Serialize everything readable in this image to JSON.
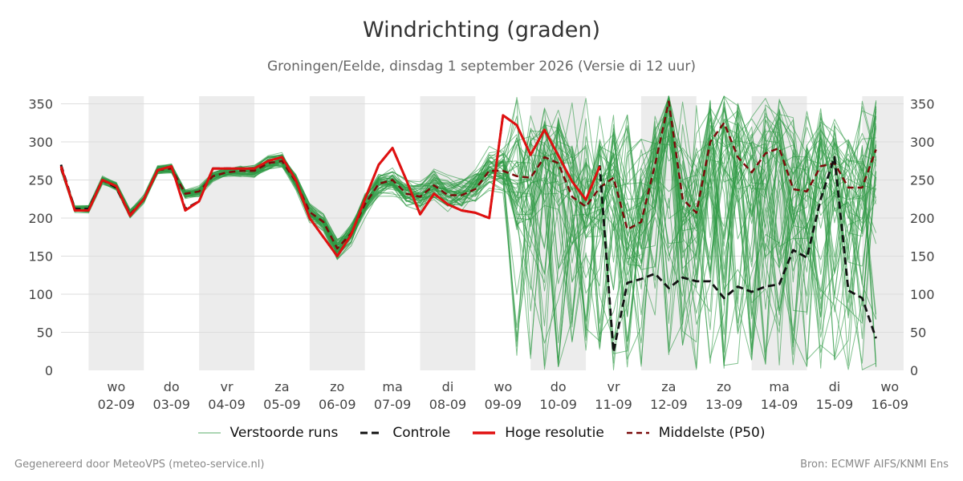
{
  "title": "Windrichting (graden)",
  "subtitle": "Groningen/Eelde, dinsdag  1 september 2026 (Versie di 12 uur)",
  "footer_left": "Gegenereerd door MeteoVPS (meteo-service.nl)",
  "footer_right": "Bron: ECMWF AIFS/KNMI Ens",
  "colors": {
    "ensemble": "#2e9a45",
    "control": "#111111",
    "hires": "#e01010",
    "median": "#7a0a0a",
    "band": "#ececec",
    "grid": "#dddddd"
  },
  "chart_data": {
    "type": "line",
    "title": "Windrichting (graden)",
    "ylim": [
      0,
      360
    ],
    "yticks": [
      0,
      50,
      100,
      150,
      200,
      250,
      300,
      350
    ],
    "x_range": [
      "2026-09-01 12:00",
      "2026-09-16 18:00"
    ],
    "x_tick_labels": [
      {
        "day": "wo",
        "date": "02-09"
      },
      {
        "day": "do",
        "date": "03-09"
      },
      {
        "day": "vr",
        "date": "04-09"
      },
      {
        "day": "za",
        "date": "05-09"
      },
      {
        "day": "zo",
        "date": "06-09"
      },
      {
        "day": "ma",
        "date": "07-09"
      },
      {
        "day": "di",
        "date": "08-09"
      },
      {
        "day": "wo",
        "date": "09-09"
      },
      {
        "day": "do",
        "date": "10-09"
      },
      {
        "day": "vr",
        "date": "11-09"
      },
      {
        "day": "za",
        "date": "12-09"
      },
      {
        "day": "zo",
        "date": "13-09"
      },
      {
        "day": "ma",
        "date": "14-09"
      },
      {
        "day": "di",
        "date": "15-09"
      },
      {
        "day": "wo",
        "date": "16-09"
      }
    ],
    "shaded_days": [
      "02-09",
      "04-09",
      "06-09",
      "08-09",
      "10-09",
      "12-09",
      "14-09",
      "16-09"
    ],
    "grid": true,
    "legend_position": "bottom",
    "series": [
      {
        "name": "Controle",
        "style": "dashed",
        "points": [
          [
            "2026-09-01 12:00",
            270
          ],
          [
            "2026-09-01 18:00",
            212
          ],
          [
            "2026-09-02 00:00",
            212
          ],
          [
            "2026-09-02 06:00",
            250
          ],
          [
            "2026-09-02 12:00",
            240
          ],
          [
            "2026-09-02 18:00",
            203
          ],
          [
            "2026-09-03 00:00",
            225
          ],
          [
            "2026-09-03 06:00",
            263
          ],
          [
            "2026-09-03 12:00",
            268
          ],
          [
            "2026-09-03 18:00",
            212
          ],
          [
            "2026-09-04 00:00",
            222
          ],
          [
            "2026-09-04 06:00",
            265
          ],
          [
            "2026-09-04 12:00",
            265
          ],
          [
            "2026-09-04 18:00",
            265
          ],
          [
            "2026-09-05 00:00",
            265
          ],
          [
            "2026-09-05 06:00",
            275
          ],
          [
            "2026-09-05 12:00",
            280
          ],
          [
            "2026-09-05 18:00",
            250
          ],
          [
            "2026-09-06 00:00",
            200
          ],
          [
            "2026-09-06 06:00",
            175
          ],
          [
            "2026-09-06 12:00",
            150
          ],
          [
            "2026-09-06 18:00",
            178
          ],
          [
            "2026-09-07 00:00",
            225
          ],
          [
            "2026-09-07 06:00",
            270
          ],
          [
            "2026-09-07 12:00",
            292
          ],
          [
            "2026-09-07 18:00",
            250
          ],
          [
            "2026-09-08 00:00",
            205
          ],
          [
            "2026-09-08 06:00",
            232
          ],
          [
            "2026-09-08 12:00",
            218
          ],
          [
            "2026-09-08 18:00",
            210
          ],
          [
            "2026-09-09 00:00",
            207
          ],
          [
            "2026-09-09 06:00",
            200
          ],
          [
            "2026-09-09 12:00",
            335
          ],
          [
            "2026-09-09 18:00",
            322
          ],
          [
            "2026-09-10 00:00",
            283
          ],
          [
            "2026-09-10 06:00",
            316
          ],
          [
            "2026-09-10 12:00",
            282
          ],
          [
            "2026-09-10 18:00",
            248
          ],
          [
            "2026-09-11 00:00",
            224
          ],
          [
            "2026-09-11 06:00",
            268
          ],
          [
            "2026-09-11 12:00",
            24
          ],
          [
            "2026-09-11 18:00",
            115
          ],
          [
            "2026-09-12 00:00",
            120
          ],
          [
            "2026-09-12 06:00",
            127
          ],
          [
            "2026-09-12 12:00",
            108
          ],
          [
            "2026-09-12 18:00",
            122
          ],
          [
            "2026-09-13 00:00",
            117
          ],
          [
            "2026-09-13 06:00",
            117
          ],
          [
            "2026-09-13 12:00",
            95
          ],
          [
            "2026-09-13 18:00",
            110
          ],
          [
            "2026-09-14 00:00",
            103
          ],
          [
            "2026-09-14 06:00",
            110
          ],
          [
            "2026-09-14 12:00",
            113
          ],
          [
            "2026-09-14 18:00",
            158
          ],
          [
            "2026-09-15 00:00",
            148
          ],
          [
            "2026-09-15 06:00",
            225
          ],
          [
            "2026-09-15 12:00",
            280
          ],
          [
            "2026-09-15 18:00",
            105
          ],
          [
            "2026-09-16 00:00",
            95
          ],
          [
            "2026-09-16 06:00",
            42
          ]
        ]
      },
      {
        "name": "Hoge resolutie",
        "style": "solid-thick",
        "points": [
          [
            "2026-09-01 12:00",
            268
          ],
          [
            "2026-09-01 18:00",
            210
          ],
          [
            "2026-09-02 00:00",
            210
          ],
          [
            "2026-09-02 06:00",
            250
          ],
          [
            "2026-09-02 12:00",
            242
          ],
          [
            "2026-09-02 18:00",
            203
          ],
          [
            "2026-09-03 00:00",
            225
          ],
          [
            "2026-09-03 06:00",
            263
          ],
          [
            "2026-09-03 12:00",
            268
          ],
          [
            "2026-09-03 18:00",
            210
          ],
          [
            "2026-09-04 00:00",
            222
          ],
          [
            "2026-09-04 06:00",
            265
          ],
          [
            "2026-09-04 12:00",
            265
          ],
          [
            "2026-09-04 18:00",
            265
          ],
          [
            "2026-09-05 00:00",
            265
          ],
          [
            "2026-09-05 06:00",
            275
          ],
          [
            "2026-09-05 12:00",
            280
          ],
          [
            "2026-09-05 18:00",
            250
          ],
          [
            "2026-09-06 00:00",
            200
          ],
          [
            "2026-09-06 06:00",
            175
          ],
          [
            "2026-09-06 12:00",
            150
          ],
          [
            "2026-09-06 18:00",
            178
          ],
          [
            "2026-09-07 00:00",
            225
          ],
          [
            "2026-09-07 06:00",
            270
          ],
          [
            "2026-09-07 12:00",
            292
          ],
          [
            "2026-09-07 18:00",
            250
          ],
          [
            "2026-09-08 00:00",
            205
          ],
          [
            "2026-09-08 06:00",
            232
          ],
          [
            "2026-09-08 12:00",
            218
          ],
          [
            "2026-09-08 18:00",
            210
          ],
          [
            "2026-09-09 00:00",
            207
          ],
          [
            "2026-09-09 06:00",
            200
          ],
          [
            "2026-09-09 12:00",
            335
          ],
          [
            "2026-09-09 18:00",
            322
          ],
          [
            "2026-09-10 00:00",
            283
          ],
          [
            "2026-09-10 06:00",
            316
          ],
          [
            "2026-09-10 12:00",
            282
          ],
          [
            "2026-09-10 18:00",
            248
          ],
          [
            "2026-09-11 00:00",
            224
          ],
          [
            "2026-09-11 06:00",
            268
          ]
        ]
      },
      {
        "name": "Middelste (P50)",
        "style": "dashed",
        "points": [
          [
            "2026-09-01 12:00",
            265
          ],
          [
            "2026-09-01 18:00",
            212
          ],
          [
            "2026-09-02 00:00",
            212
          ],
          [
            "2026-09-02 06:00",
            250
          ],
          [
            "2026-09-02 12:00",
            242
          ],
          [
            "2026-09-02 18:00",
            205
          ],
          [
            "2026-09-03 00:00",
            225
          ],
          [
            "2026-09-03 06:00",
            263
          ],
          [
            "2026-09-03 12:00",
            265
          ],
          [
            "2026-09-03 18:00",
            232
          ],
          [
            "2026-09-04 00:00",
            235
          ],
          [
            "2026-09-04 06:00",
            255
          ],
          [
            "2026-09-04 12:00",
            260
          ],
          [
            "2026-09-04 18:00",
            262
          ],
          [
            "2026-09-05 00:00",
            262
          ],
          [
            "2026-09-05 06:00",
            272
          ],
          [
            "2026-09-05 12:00",
            275
          ],
          [
            "2026-09-05 18:00",
            248
          ],
          [
            "2026-09-06 00:00",
            208
          ],
          [
            "2026-09-06 06:00",
            195
          ],
          [
            "2026-09-06 12:00",
            160
          ],
          [
            "2026-09-06 18:00",
            180
          ],
          [
            "2026-09-07 00:00",
            218
          ],
          [
            "2026-09-07 06:00",
            245
          ],
          [
            "2026-09-07 12:00",
            250
          ],
          [
            "2026-09-07 18:00",
            232
          ],
          [
            "2026-09-08 00:00",
            228
          ],
          [
            "2026-09-08 06:00",
            243
          ],
          [
            "2026-09-08 12:00",
            230
          ],
          [
            "2026-09-08 18:00",
            230
          ],
          [
            "2026-09-09 00:00",
            238
          ],
          [
            "2026-09-09 06:00",
            262
          ],
          [
            "2026-09-09 12:00",
            262
          ],
          [
            "2026-09-09 18:00",
            255
          ],
          [
            "2026-09-10 00:00",
            253
          ],
          [
            "2026-09-10 06:00",
            280
          ],
          [
            "2026-09-10 12:00",
            272
          ],
          [
            "2026-09-10 18:00",
            228
          ],
          [
            "2026-09-11 00:00",
            215
          ],
          [
            "2026-09-11 06:00",
            240
          ],
          [
            "2026-09-11 12:00",
            253
          ],
          [
            "2026-09-11 18:00",
            185
          ],
          [
            "2026-09-12 00:00",
            195
          ],
          [
            "2026-09-12 06:00",
            270
          ],
          [
            "2026-09-12 12:00",
            353
          ],
          [
            "2026-09-12 18:00",
            225
          ],
          [
            "2026-09-13 00:00",
            207
          ],
          [
            "2026-09-13 06:00",
            300
          ],
          [
            "2026-09-13 12:00",
            325
          ],
          [
            "2026-09-13 18:00",
            280
          ],
          [
            "2026-09-14 00:00",
            260
          ],
          [
            "2026-09-14 06:00",
            285
          ],
          [
            "2026-09-14 12:00",
            292
          ],
          [
            "2026-09-14 18:00",
            238
          ],
          [
            "2026-09-15 00:00",
            235
          ],
          [
            "2026-09-15 06:00",
            268
          ],
          [
            "2026-09-15 12:00",
            272
          ],
          [
            "2026-09-15 18:00",
            240
          ],
          [
            "2026-09-16 00:00",
            240
          ],
          [
            "2026-09-16 06:00",
            290
          ]
        ]
      },
      {
        "name": "Verstoorde runs",
        "style": "thin-ensemble",
        "members": 50
      }
    ]
  },
  "legend": [
    {
      "key": "ensemble",
      "label": "Verstoorde runs"
    },
    {
      "key": "control",
      "label": "Controle"
    },
    {
      "key": "hires",
      "label": "Hoge resolutie"
    },
    {
      "key": "median",
      "label": "Middelste (P50)"
    }
  ]
}
